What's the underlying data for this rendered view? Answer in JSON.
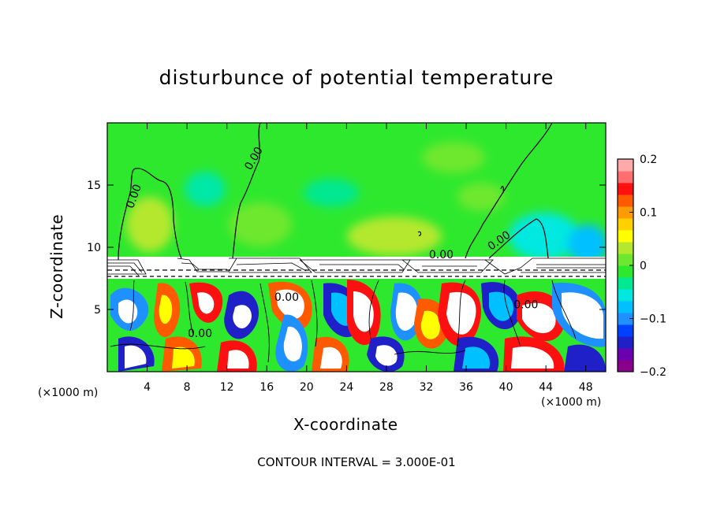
{
  "chart_data": {
    "type": "heatmap",
    "title": "disturbunce of potential temperature",
    "xlabel": "X-coordinate",
    "ylabel": "Z-coordinate",
    "x_unit": "(×1000 m)",
    "z_unit": "(×1000 m)",
    "xlim": [
      0,
      50
    ],
    "zlim": [
      0,
      20
    ],
    "x_ticks": [
      4,
      8,
      12,
      16,
      20,
      24,
      28,
      32,
      36,
      40,
      44,
      48
    ],
    "z_ticks": [
      5,
      10,
      15
    ],
    "colorbar": {
      "range": [
        -0.2,
        0.2
      ],
      "tick_values": [
        0.2,
        0.1,
        0,
        -0.1,
        -0.2
      ],
      "tick_labels": [
        "0.2",
        "0.1",
        "0",
        "−0.1",
        "−0.2"
      ],
      "colors": [
        "#8b008b",
        "#6a00b0",
        "#2020c8",
        "#0040ff",
        "#1e90ff",
        "#00c0ff",
        "#00e8e0",
        "#00e890",
        "#2ee82e",
        "#6ee82e",
        "#b4e82e",
        "#ffff00",
        "#ffd000",
        "#ff9a00",
        "#ff5a00",
        "#ff1010",
        "#ff6e6e",
        "#ffaaaa"
      ]
    },
    "contour_labels": [
      {
        "text": "0.00",
        "x": 3,
        "z": 14,
        "rotation": -70
      },
      {
        "text": "0.00",
        "x": 15,
        "z": 17,
        "rotation": -60
      },
      {
        "text": "0.00",
        "x": 39.5,
        "z": 10.3,
        "rotation": -35
      },
      {
        "text": "0.00",
        "x": 33.5,
        "z": 9.1,
        "rotation": 0
      },
      {
        "text": "0.00",
        "x": 18,
        "z": 5.7,
        "rotation": 0
      },
      {
        "text": "0.00",
        "x": 9.3,
        "z": 2.8,
        "rotation": 0
      },
      {
        "text": "0.00",
        "x": 42,
        "z": 5.1,
        "rotation": 0
      }
    ],
    "contour_interval_text": "CONTOUR INTERVAL = 3.000E-01",
    "regions": [
      {
        "zmin": 10,
        "zmax": 20,
        "value": 0.0,
        "description": "near-zero upper layer"
      },
      {
        "zmin": 7.5,
        "zmax": 9,
        "value": 0.0,
        "description": "flat white band with dense contours"
      },
      {
        "zmin": 0,
        "zmax": 7.5,
        "value": "oscillating -0.2 to 0.2",
        "description": "turbulent lower layer"
      }
    ]
  }
}
